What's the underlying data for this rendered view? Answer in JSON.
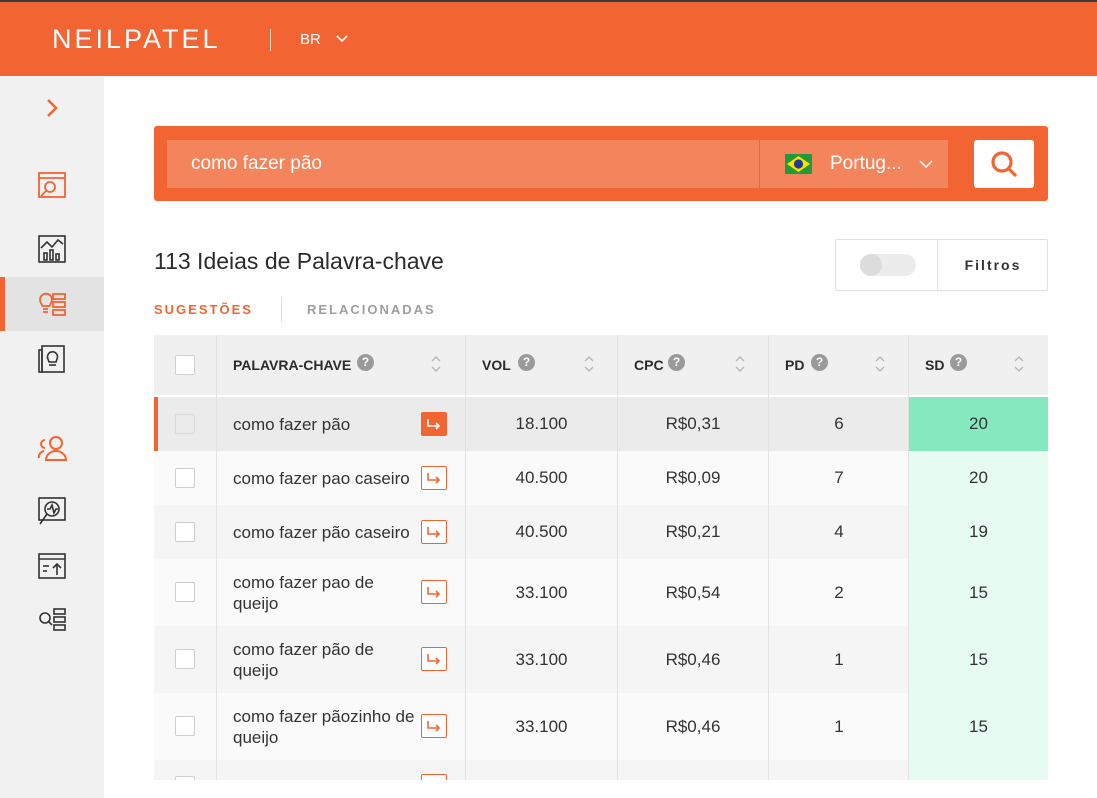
{
  "header": {
    "logo": "NEILPATEL",
    "region": "BR"
  },
  "search": {
    "query": "como fazer pão",
    "language": "Portug...",
    "placeholder": ""
  },
  "results": {
    "title": "113 Ideias de Palavra-chave",
    "filter_label": "Filtros"
  },
  "tabs": [
    {
      "label": "SUGESTÕES",
      "active": true
    },
    {
      "label": "RELACIONADAS",
      "active": false
    }
  ],
  "table": {
    "headers": {
      "keyword": "PALAVRA-CHAVE",
      "vol": "VOL",
      "cpc": "CPC",
      "pd": "PD",
      "sd": "SD"
    },
    "rows": [
      {
        "keyword": "como fazer pão",
        "vol": "18.100",
        "cpc": "R$0,31",
        "pd": "6",
        "sd": "20"
      },
      {
        "keyword": "como fazer pao caseiro",
        "vol": "40.500",
        "cpc": "R$0,09",
        "pd": "7",
        "sd": "20"
      },
      {
        "keyword": "como fazer pão caseiro",
        "vol": "40.500",
        "cpc": "R$0,21",
        "pd": "4",
        "sd": "19"
      },
      {
        "keyword": "como fazer pao de queijo",
        "vol": "33.100",
        "cpc": "R$0,54",
        "pd": "2",
        "sd": "15"
      },
      {
        "keyword": "como fazer pão de queijo",
        "vol": "33.100",
        "cpc": "R$0,46",
        "pd": "1",
        "sd": "15"
      },
      {
        "keyword": "como fazer pãozinho de queijo",
        "vol": "33.100",
        "cpc": "R$0,46",
        "pd": "1",
        "sd": "15"
      }
    ]
  },
  "colors": {
    "brand": "#f26532",
    "sd_highlight": "#86e8be",
    "sd_light": "#e6fbf2"
  },
  "icons": {
    "sidebar": [
      "chevron-right-icon",
      "site-audit-icon",
      "traffic-chart-icon",
      "keyword-ideas-icon",
      "content-ideas-icon",
      "users-icon",
      "rank-tracker-icon",
      "backlinks-icon",
      "keyword-search-icon"
    ]
  }
}
